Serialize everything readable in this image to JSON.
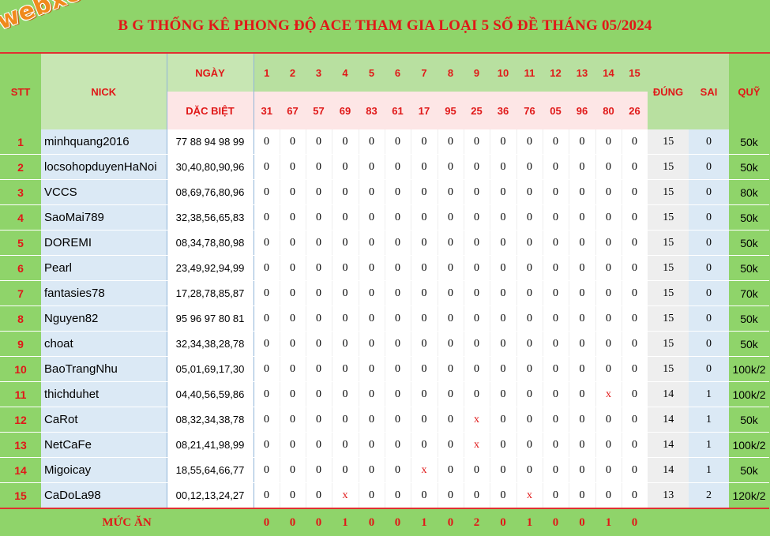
{
  "watermark": "webxoso.net",
  "title": "BẢNG THỐNG KÊ PHONG ĐỘ ACE THAM GIA LOẠI 5 SỐ ĐỀ THÁNG 05/2024",
  "title_visible": "B   G THỐNG KÊ PHONG ĐỘ ACE THAM GIA LOẠI 5 SỐ ĐỀ THÁNG 05/2024",
  "headers": {
    "stt": "STT",
    "nick": "NICK",
    "ngay": "NGÀY",
    "dac_biet": "DẶC BIỆT",
    "dung": "ĐÚNG",
    "sai": "SAI",
    "quy": "QUỸ",
    "days": [
      "1",
      "2",
      "3",
      "4",
      "5",
      "6",
      "7",
      "8",
      "9",
      "10",
      "11",
      "12",
      "13",
      "14",
      "15"
    ],
    "specials": [
      "31",
      "67",
      "57",
      "69",
      "83",
      "61",
      "17",
      "95",
      "25",
      "36",
      "76",
      "05",
      "96",
      "80",
      "26"
    ]
  },
  "rows": [
    {
      "stt": "1",
      "nick": "minhquang2016",
      "numbers": "77 88 94 98 99",
      "marks": [
        "0",
        "0",
        "0",
        "0",
        "0",
        "0",
        "0",
        "0",
        "0",
        "0",
        "0",
        "0",
        "0",
        "0",
        "0"
      ],
      "dung": "15",
      "sai": "0",
      "quy": "50k"
    },
    {
      "stt": "2",
      "nick": "locsohopduyenHaNoi",
      "numbers": "30,40,80,90,96",
      "marks": [
        "0",
        "0",
        "0",
        "0",
        "0",
        "0",
        "0",
        "0",
        "0",
        "0",
        "0",
        "0",
        "0",
        "0",
        "0"
      ],
      "dung": "15",
      "sai": "0",
      "quy": "50k"
    },
    {
      "stt": "3",
      "nick": "VCCS",
      "numbers": "08,69,76,80,96",
      "marks": [
        "0",
        "0",
        "0",
        "0",
        "0",
        "0",
        "0",
        "0",
        "0",
        "0",
        "0",
        "0",
        "0",
        "0",
        "0"
      ],
      "dung": "15",
      "sai": "0",
      "quy": "80k"
    },
    {
      "stt": "4",
      "nick": "SaoMai789",
      "numbers": "32,38,56,65,83",
      "marks": [
        "0",
        "0",
        "0",
        "0",
        "0",
        "0",
        "0",
        "0",
        "0",
        "0",
        "0",
        "0",
        "0",
        "0",
        "0"
      ],
      "dung": "15",
      "sai": "0",
      "quy": "50k"
    },
    {
      "stt": "5",
      "nick": "DOREMI",
      "numbers": "08,34,78,80,98",
      "marks": [
        "0",
        "0",
        "0",
        "0",
        "0",
        "0",
        "0",
        "0",
        "0",
        "0",
        "0",
        "0",
        "0",
        "0",
        "0"
      ],
      "dung": "15",
      "sai": "0",
      "quy": "50k"
    },
    {
      "stt": "6",
      "nick": "Pearl",
      "numbers": "23,49,92,94,99",
      "marks": [
        "0",
        "0",
        "0",
        "0",
        "0",
        "0",
        "0",
        "0",
        "0",
        "0",
        "0",
        "0",
        "0",
        "0",
        "0"
      ],
      "dung": "15",
      "sai": "0",
      "quy": "50k"
    },
    {
      "stt": "7",
      "nick": "fantasies78",
      "numbers": "17,28,78,85,87",
      "marks": [
        "0",
        "0",
        "0",
        "0",
        "0",
        "0",
        "0",
        "0",
        "0",
        "0",
        "0",
        "0",
        "0",
        "0",
        "0"
      ],
      "dung": "15",
      "sai": "0",
      "quy": "70k"
    },
    {
      "stt": "8",
      "nick": "Nguyen82",
      "numbers": "95 96 97 80 81",
      "marks": [
        "0",
        "0",
        "0",
        "0",
        "0",
        "0",
        "0",
        "0",
        "0",
        "0",
        "0",
        "0",
        "0",
        "0",
        "0"
      ],
      "dung": "15",
      "sai": "0",
      "quy": "50k"
    },
    {
      "stt": "9",
      "nick": "choat",
      "numbers": "32,34,38,28,78",
      "marks": [
        "0",
        "0",
        "0",
        "0",
        "0",
        "0",
        "0",
        "0",
        "0",
        "0",
        "0",
        "0",
        "0",
        "0",
        "0"
      ],
      "dung": "15",
      "sai": "0",
      "quy": "50k"
    },
    {
      "stt": "10",
      "nick": "BaoTrangNhu",
      "numbers": "05,01,69,17,30",
      "marks": [
        "0",
        "0",
        "0",
        "0",
        "0",
        "0",
        "0",
        "0",
        "0",
        "0",
        "0",
        "0",
        "0",
        "0",
        "0"
      ],
      "dung": "15",
      "sai": "0",
      "quy": "100k/2"
    },
    {
      "stt": "11",
      "nick": "thichduhet",
      "numbers": "04,40,56,59,86",
      "marks": [
        "0",
        "0",
        "0",
        "0",
        "0",
        "0",
        "0",
        "0",
        "0",
        "0",
        "0",
        "0",
        "0",
        "x",
        "0"
      ],
      "dung": "14",
      "sai": "1",
      "quy": "100k/2"
    },
    {
      "stt": "12",
      "nick": "CaRot",
      "numbers": "08,32,34,38,78",
      "marks": [
        "0",
        "0",
        "0",
        "0",
        "0",
        "0",
        "0",
        "0",
        "x",
        "0",
        "0",
        "0",
        "0",
        "0",
        "0"
      ],
      "dung": "14",
      "sai": "1",
      "quy": "50k"
    },
    {
      "stt": "13",
      "nick": "NetCaFe",
      "numbers": "08,21,41,98,99",
      "marks": [
        "0",
        "0",
        "0",
        "0",
        "0",
        "0",
        "0",
        "0",
        "x",
        "0",
        "0",
        "0",
        "0",
        "0",
        "0"
      ],
      "dung": "14",
      "sai": "1",
      "quy": "100k/2"
    },
    {
      "stt": "14",
      "nick": "Migoicay",
      "numbers": "18,55,64,66,77",
      "marks": [
        "0",
        "0",
        "0",
        "0",
        "0",
        "0",
        "x",
        "0",
        "0",
        "0",
        "0",
        "0",
        "0",
        "0",
        "0"
      ],
      "dung": "14",
      "sai": "1",
      "quy": "50k"
    },
    {
      "stt": "15",
      "nick": "CaDoLa98",
      "numbers": "00,12,13,24,27",
      "marks": [
        "0",
        "0",
        "0",
        "x",
        "0",
        "0",
        "0",
        "0",
        "0",
        "0",
        "x",
        "0",
        "0",
        "0",
        "0"
      ],
      "dung": "13",
      "sai": "2",
      "quy": "120k/2"
    }
  ],
  "footer": {
    "label": "MỨC ĂN",
    "values": [
      "0",
      "0",
      "0",
      "1",
      "0",
      "0",
      "1",
      "0",
      "2",
      "0",
      "1",
      "0",
      "0",
      "1",
      "0"
    ]
  }
}
